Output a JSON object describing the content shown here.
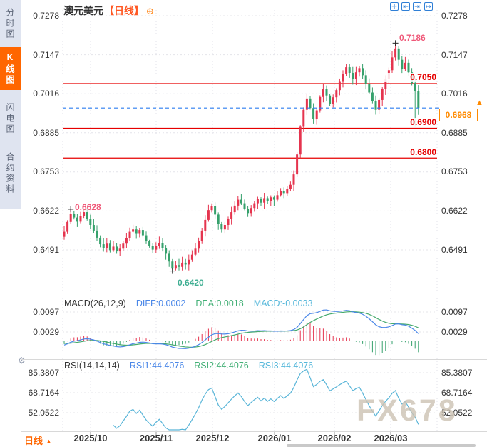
{
  "sidebar": {
    "items": [
      {
        "label": "分时图",
        "active": false
      },
      {
        "label": "K线图",
        "active": true
      },
      {
        "label": "闪电图",
        "active": false
      },
      {
        "label": "合约资料",
        "active": false
      }
    ]
  },
  "header": {
    "title": "澳元美元",
    "period_tag": "【日线】",
    "tools": [
      "✛",
      "⇤",
      "⇥",
      "↦"
    ]
  },
  "icons": {
    "add_indicator": "⊕",
    "gear": "⚙",
    "price_arrow": "▲",
    "period_arrow": "▲"
  },
  "main_chart": {
    "y_axis": [
      "0.7278",
      "0.7147",
      "0.7016",
      "0.6885",
      "0.6753",
      "0.6622",
      "0.6491"
    ],
    "levels": {
      "resistance": "0.7050",
      "support1": "0.6900",
      "support2": "0.6800"
    },
    "current_price": "0.6968",
    "annotations": {
      "early_high": "0.6628",
      "low": "0.6420",
      "high": "0.7186"
    }
  },
  "macd_panel": {
    "name": "MACD(26,12,9)",
    "diff": "DIFF:0.0002",
    "dea": "DEA:0.0018",
    "macd": "MACD:-0.0033",
    "y_axis": [
      "0.0097",
      "0.0029"
    ]
  },
  "rsi_panel": {
    "name": "RSI(14,14,14)",
    "rsi1": "RSI1:44.4076",
    "rsi2": "RSI2:44.4076",
    "rsi3": "RSI3:44.4076",
    "y_axis": [
      "85.3807",
      "68.7164",
      "52.0522"
    ]
  },
  "x_axis": {
    "dates": [
      "2025/10",
      "2025/11",
      "2025/12",
      "2026/01",
      "2026/02",
      "2026/03"
    ]
  },
  "footer": {
    "period_selector": "日线"
  },
  "watermark": "FX678",
  "colors": {
    "up": "#e5344e",
    "down": "#36a16c",
    "sr_line": "#e60000",
    "dashed_price_line": "#2d7ef0",
    "accent_orange": "#ff6600",
    "price_tag_orange": "#ff8a00",
    "macd_diff_line": "#4a87e8",
    "macd_dea_line": "#46aa6e",
    "rsi_line": "#59b5d8",
    "label_pink": "#ef5878",
    "label_teal": "#3fae92"
  },
  "chart_data": {
    "type": "candlestick",
    "title": "澳元美元 日线 (AUD/USD daily)",
    "x_months": [
      "2025/10",
      "2025/11",
      "2025/12",
      "2026/01",
      "2026/02",
      "2026/03"
    ],
    "y_ticks": [
      0.7278,
      0.7147,
      0.7016,
      0.6885,
      0.6753,
      0.6622,
      0.6491
    ],
    "first_open": 0.6535,
    "closes": [
      0.6552,
      0.6585,
      0.6612,
      0.66,
      0.6586,
      0.6605,
      0.6618,
      0.6596,
      0.6575,
      0.6556,
      0.6532,
      0.651,
      0.6496,
      0.6512,
      0.649,
      0.6502,
      0.6486,
      0.6495,
      0.6512,
      0.653,
      0.6552,
      0.656,
      0.6545,
      0.6558,
      0.654,
      0.652,
      0.6505,
      0.6492,
      0.6505,
      0.6515,
      0.6498,
      0.6478,
      0.6452,
      0.6428,
      0.644,
      0.6434,
      0.6448,
      0.6442,
      0.6458,
      0.6475,
      0.6495,
      0.652,
      0.6556,
      0.6592,
      0.6625,
      0.6638,
      0.661,
      0.6578,
      0.656,
      0.6575,
      0.6596,
      0.6618,
      0.664,
      0.666,
      0.6648,
      0.663,
      0.6615,
      0.6632,
      0.6648,
      0.6662,
      0.665,
      0.6665,
      0.6655,
      0.6668,
      0.666,
      0.6675,
      0.669,
      0.6682,
      0.6696,
      0.671,
      0.6745,
      0.6812,
      0.6905,
      0.6962,
      0.7,
      0.6968,
      0.693,
      0.696,
      0.7005,
      0.7032,
      0.701,
      0.6982,
      0.7004,
      0.7028,
      0.7056,
      0.7082,
      0.7105,
      0.7086,
      0.7065,
      0.7088,
      0.7102,
      0.7078,
      0.705,
      0.702,
      0.699,
      0.6962,
      0.6995,
      0.7032,
      0.7065,
      0.7095,
      0.7138,
      0.7168,
      0.713,
      0.7098,
      0.712,
      0.7088,
      0.7052,
      0.7025,
      0.6968
    ],
    "wick_overrides": {
      "2": {
        "high": 0.6628
      },
      "33": {
        "low": 0.642
      },
      "101": {
        "high": 0.7186
      },
      "107": {
        "low": 0.6905
      },
      "108": {
        "low": 0.6945
      }
    },
    "markers": [
      {
        "index": 2,
        "price": 0.6628,
        "label": "0.6628"
      },
      {
        "index": 33,
        "price": 0.642,
        "label": "0.6420"
      },
      {
        "index": 101,
        "price": 0.7186,
        "label": "0.7186"
      }
    ],
    "horizontal_lines": [
      0.705,
      0.69,
      0.68
    ],
    "current_price": 0.6968,
    "macd": {
      "params": [
        26,
        12,
        9
      ],
      "diff": 0.0002,
      "dea": 0.0018,
      "macd": -0.0033,
      "y_ticks": [
        0.0097,
        0.0029
      ]
    },
    "rsi": {
      "params": [
        14,
        14,
        14
      ],
      "rsi1": 44.4076,
      "rsi2": 44.4076,
      "rsi3": 44.4076,
      "y_ticks": [
        85.3807,
        68.7164,
        52.0522
      ]
    }
  }
}
